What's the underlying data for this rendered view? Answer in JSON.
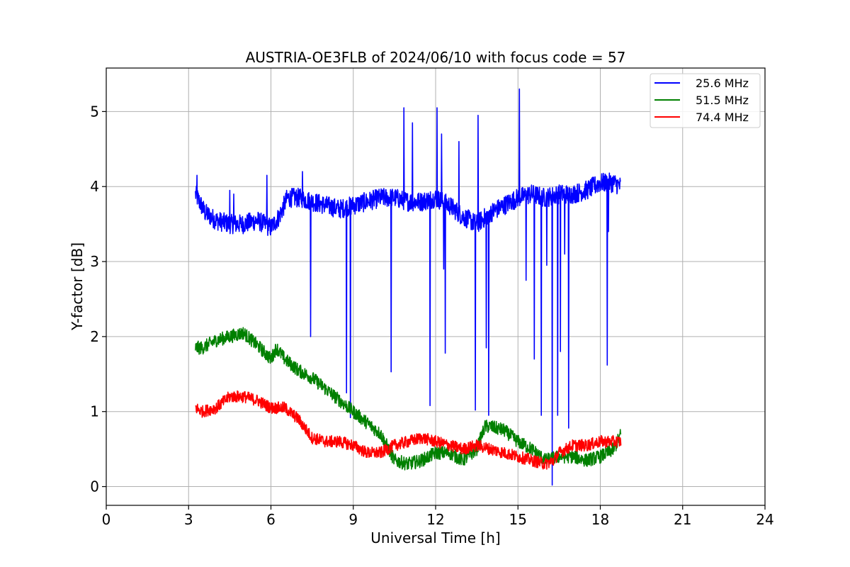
{
  "chart_data": {
    "type": "line",
    "title": "AUSTRIA-OE3FLB of 2024/06/10 with focus code = 57",
    "xlabel": "Universal Time [h]",
    "ylabel": "Y-factor [dB]",
    "xlim": [
      0,
      24
    ],
    "ylim": [
      -0.25,
      5.58
    ],
    "xticks": [
      0,
      3,
      6,
      9,
      12,
      15,
      18,
      21,
      24
    ],
    "yticks": [
      0,
      1,
      2,
      3,
      4,
      5
    ],
    "grid": true,
    "legend_position": "top-right",
    "series": [
      {
        "name": "25.6 MHz",
        "color": "#0000ff",
        "noise": 0.13,
        "x": [
          3.25,
          3.6,
          4.0,
          4.5,
          5.0,
          5.5,
          6.0,
          6.3,
          6.6,
          7.0,
          7.5,
          8.0,
          8.5,
          9.0,
          9.5,
          10.0,
          10.5,
          11.0,
          11.5,
          12.0,
          12.5,
          13.0,
          13.5,
          14.0,
          14.5,
          15.0,
          15.5,
          16.0,
          16.5,
          17.0,
          17.5,
          18.0,
          18.5,
          18.75
        ],
        "y": [
          3.9,
          3.65,
          3.55,
          3.5,
          3.5,
          3.55,
          3.45,
          3.6,
          3.85,
          3.85,
          3.8,
          3.75,
          3.7,
          3.75,
          3.8,
          3.85,
          3.85,
          3.8,
          3.8,
          3.85,
          3.75,
          3.6,
          3.5,
          3.65,
          3.75,
          3.85,
          3.9,
          3.85,
          3.9,
          3.9,
          3.95,
          4.05,
          4.05,
          4.0
        ],
        "spikes": [
          [
            3.3,
            4.15
          ],
          [
            4.5,
            3.95
          ],
          [
            4.65,
            3.9
          ],
          [
            5.85,
            4.15
          ],
          [
            7.15,
            4.2
          ],
          [
            7.45,
            2.0
          ],
          [
            8.75,
            1.25
          ],
          [
            8.9,
            0.92
          ],
          [
            10.38,
            1.53
          ],
          [
            10.85,
            5.05
          ],
          [
            11.15,
            4.85
          ],
          [
            11.8,
            1.08
          ],
          [
            12.05,
            5.05
          ],
          [
            12.22,
            4.7
          ],
          [
            12.35,
            1.78
          ],
          [
            12.3,
            2.9
          ],
          [
            12.85,
            4.6
          ],
          [
            13.45,
            1.02
          ],
          [
            13.55,
            4.95
          ],
          [
            13.85,
            1.85
          ],
          [
            13.93,
            0.95
          ],
          [
            15.05,
            5.3
          ],
          [
            15.3,
            2.75
          ],
          [
            15.6,
            1.7
          ],
          [
            15.85,
            0.95
          ],
          [
            16.05,
            2.95
          ],
          [
            16.25,
            0.02
          ],
          [
            16.45,
            0.95
          ],
          [
            16.55,
            1.8
          ],
          [
            16.7,
            3.1
          ],
          [
            16.85,
            0.78
          ],
          [
            18.25,
            1.62
          ],
          [
            18.3,
            3.4
          ]
        ]
      },
      {
        "name": "51.5 MHz",
        "color": "#008000",
        "noise": 0.09,
        "x": [
          3.25,
          3.5,
          4.0,
          4.5,
          5.0,
          5.3,
          5.6,
          6.0,
          6.2,
          6.5,
          7.0,
          7.5,
          8.0,
          8.5,
          9.0,
          9.5,
          10.0,
          10.5,
          11.0,
          11.5,
          12.0,
          12.5,
          13.0,
          13.5,
          13.8,
          14.0,
          14.5,
          15.0,
          15.5,
          16.0,
          16.5,
          17.0,
          17.5,
          18.0,
          18.5,
          18.75
        ],
        "y": [
          1.85,
          1.85,
          1.95,
          2.0,
          2.05,
          1.95,
          1.85,
          1.7,
          1.85,
          1.7,
          1.55,
          1.45,
          1.3,
          1.15,
          1.0,
          0.85,
          0.7,
          0.35,
          0.3,
          0.35,
          0.45,
          0.45,
          0.35,
          0.5,
          0.8,
          0.8,
          0.75,
          0.6,
          0.5,
          0.35,
          0.4,
          0.4,
          0.35,
          0.4,
          0.5,
          0.7
        ],
        "spikes": []
      },
      {
        "name": "74.4 MHz",
        "color": "#ff0000",
        "noise": 0.08,
        "x": [
          3.25,
          3.5,
          4.0,
          4.5,
          5.0,
          5.5,
          6.0,
          6.5,
          7.0,
          7.5,
          8.0,
          8.5,
          9.0,
          9.5,
          10.0,
          10.5,
          11.0,
          11.5,
          12.0,
          12.5,
          13.0,
          13.5,
          14.0,
          14.5,
          15.0,
          15.5,
          16.0,
          16.3,
          16.5,
          17.0,
          17.5,
          18.0,
          18.5,
          18.75
        ],
        "y": [
          1.05,
          1.0,
          1.05,
          1.2,
          1.2,
          1.15,
          1.05,
          1.05,
          0.9,
          0.65,
          0.6,
          0.6,
          0.55,
          0.45,
          0.45,
          0.55,
          0.6,
          0.65,
          0.6,
          0.55,
          0.5,
          0.55,
          0.5,
          0.45,
          0.4,
          0.35,
          0.3,
          0.35,
          0.45,
          0.55,
          0.55,
          0.6,
          0.6,
          0.6
        ],
        "spikes": []
      }
    ]
  }
}
